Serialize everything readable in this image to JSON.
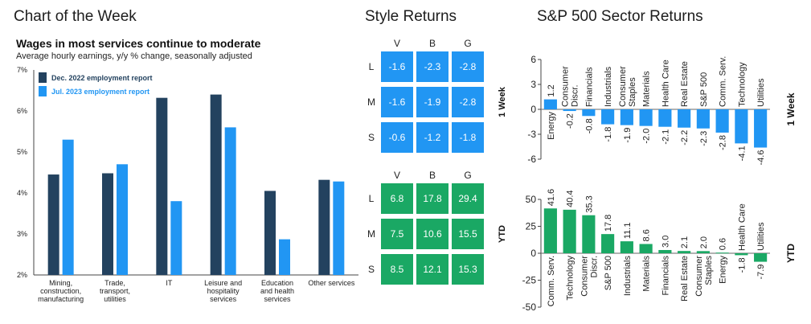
{
  "headers": {
    "chart_of_week": "Chart of the Week",
    "style_returns": "Style Returns",
    "sector_returns": "S&P 500 Sector Returns"
  },
  "chart_data": [
    {
      "type": "bar",
      "title": "Wages in most services continue to moderate",
      "subtitle": "Average hourly earnings, y/y % change, seasonally adjusted",
      "categories": [
        "Mining, construction, manufacturing",
        "Trade, transport, utilities",
        "IT",
        "Leisure and hospitality services",
        "Education and health services",
        "Other services"
      ],
      "category_lines": [
        [
          "Mining,",
          "construction,",
          "manufacturing"
        ],
        [
          "Trade,",
          "transport,",
          "utilities"
        ],
        [
          "IT"
        ],
        [
          "Leisure and",
          "hospitality",
          "services"
        ],
        [
          "Education",
          "and health",
          "services"
        ],
        [
          "Other services"
        ]
      ],
      "series": [
        {
          "name": "Dec. 2022 employment report",
          "color": "#23425f",
          "values": [
            4.45,
            4.48,
            6.32,
            6.4,
            4.05,
            4.32
          ]
        },
        {
          "name": "Jul. 2023 employment report",
          "color": "#2196f3",
          "values": [
            5.3,
            4.7,
            3.8,
            5.6,
            2.87,
            4.28
          ]
        }
      ],
      "ylim": [
        2,
        7
      ],
      "yticks": [
        "2%",
        "3%",
        "4%",
        "5%",
        "6%",
        "7%"
      ],
      "legend": "top-left"
    },
    {
      "type": "table",
      "title": "Style Returns",
      "columns": [
        "V",
        "B",
        "G"
      ],
      "rows": [
        "L",
        "M",
        "S"
      ],
      "side_label": "1 Week",
      "values": [
        [
          "-1.6",
          "-2.3",
          "-2.8"
        ],
        [
          "-1.6",
          "-1.9",
          "-2.8"
        ],
        [
          "-0.6",
          "-1.2",
          "-1.8"
        ]
      ],
      "color": "#2196f3"
    },
    {
      "type": "table",
      "columns": [
        "V",
        "B",
        "G"
      ],
      "rows": [
        "L",
        "M",
        "S"
      ],
      "side_label": "YTD",
      "values": [
        [
          "6.8",
          "17.8",
          "29.4"
        ],
        [
          "7.5",
          "10.6",
          "15.5"
        ],
        [
          "8.5",
          "12.1",
          "15.3"
        ]
      ],
      "color": "#1aa864"
    },
    {
      "type": "bar",
      "title": "S&P 500 Sector Returns",
      "side_label": "1 Week",
      "categories": [
        "Energy",
        "Consumer Discr.",
        "Financials",
        "Industrials",
        "Consumer Staples",
        "Materials",
        "Health Care",
        "Real Estate",
        "S&P 500",
        "Comm. Serv.",
        "Technology",
        "Utilities"
      ],
      "category_lines": [
        [
          "Energy"
        ],
        [
          "Consumer",
          "Discr."
        ],
        [
          "Financials"
        ],
        [
          "Industrials"
        ],
        [
          "Consumer",
          "Staples"
        ],
        [
          "Materials"
        ],
        [
          "Health Care"
        ],
        [
          "Real Estate"
        ],
        [
          "S&P 500"
        ],
        [
          "Comm. Serv."
        ],
        [
          "Technology"
        ],
        [
          "Utilities"
        ]
      ],
      "values": [
        1.2,
        -0.2,
        -0.8,
        -1.8,
        -1.9,
        -2.0,
        -2.1,
        -2.2,
        -2.3,
        -2.8,
        -4.1,
        -4.6
      ],
      "labels": [
        "1.2",
        "-0.2",
        "-0.8",
        "-1.8",
        "-1.9",
        "-2.0",
        "-2.1",
        "-2.2",
        "-2.3",
        "-2.8",
        "-4.1",
        "-4.6"
      ],
      "ylim": [
        -6,
        6
      ],
      "yticks": [
        "-6",
        "-3",
        "0",
        "3",
        "6"
      ],
      "color": "#2196f3"
    },
    {
      "type": "bar",
      "side_label": "YTD",
      "categories": [
        "Comm. Serv.",
        "Technology",
        "Consumer Discr.",
        "S&P 500",
        "Industrials",
        "Materials",
        "Financials",
        "Real Estate",
        "Consumer Staples",
        "Energy",
        "Health Care",
        "Utilities"
      ],
      "category_lines": [
        [
          "Comm. Serv."
        ],
        [
          "Technology"
        ],
        [
          "Consumer",
          "Discr."
        ],
        [
          "S&P 500"
        ],
        [
          "Industrials"
        ],
        [
          "Materials"
        ],
        [
          "Financials"
        ],
        [
          "Real Estate"
        ],
        [
          "Consumer",
          "Staples"
        ],
        [
          "Energy"
        ],
        [
          "Health Care"
        ],
        [
          "Utilities"
        ]
      ],
      "values": [
        41.6,
        40.4,
        35.3,
        17.8,
        11.1,
        8.6,
        3.0,
        2.1,
        2.0,
        0.6,
        -1.8,
        -7.9
      ],
      "labels": [
        "41.6",
        "40.4",
        "35.3",
        "17.8",
        "11.1",
        "8.6",
        "3.0",
        "2.1",
        "2.0",
        "0.6",
        "-1.8",
        "-7.9"
      ],
      "ylim": [
        -50,
        50
      ],
      "yticks": [
        "-50",
        "-25",
        "0",
        "25",
        "50"
      ],
      "color": "#1aa864"
    }
  ]
}
